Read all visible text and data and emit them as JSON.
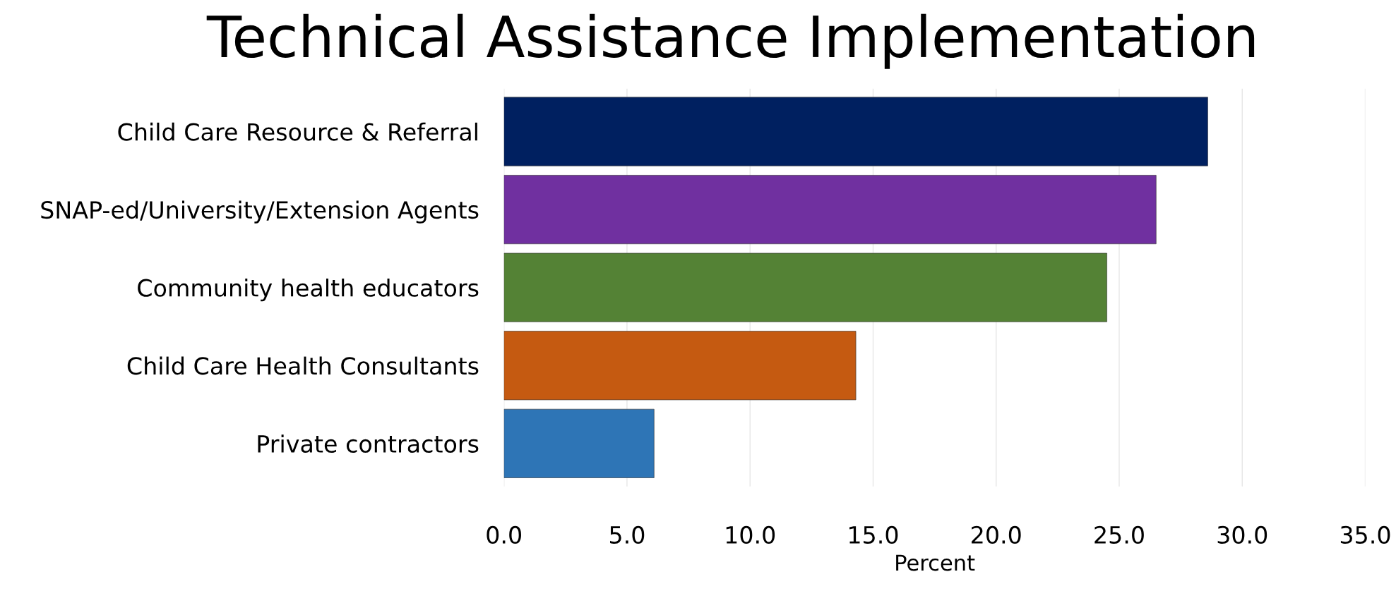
{
  "chart_data": {
    "type": "bar",
    "orientation": "horizontal",
    "title": "Technical Assistance Implementation",
    "xlabel": "Percent",
    "categories": [
      "Child Care Resource & Referral",
      "SNAP-ed/University/Extension Agents",
      "Community health educators",
      "Child Care Health Consultants",
      "Private contractors"
    ],
    "values": [
      28.6,
      26.5,
      24.5,
      14.3,
      6.1
    ],
    "colors": [
      "#002060",
      "#7030a0",
      "#548235",
      "#c55a11",
      "#2e75b6"
    ],
    "xlim": [
      0,
      35
    ],
    "xticks": [
      {
        "value": 0,
        "label": "0.0"
      },
      {
        "value": 5,
        "label": "5.0"
      },
      {
        "value": 10,
        "label": "10.0"
      },
      {
        "value": 15,
        "label": "15.0"
      },
      {
        "value": 20,
        "label": "20.0"
      },
      {
        "value": 25,
        "label": "25.0"
      },
      {
        "value": 30,
        "label": "30.0"
      },
      {
        "value": 35,
        "label": "35.0"
      }
    ],
    "grid": "x",
    "legend": false
  }
}
